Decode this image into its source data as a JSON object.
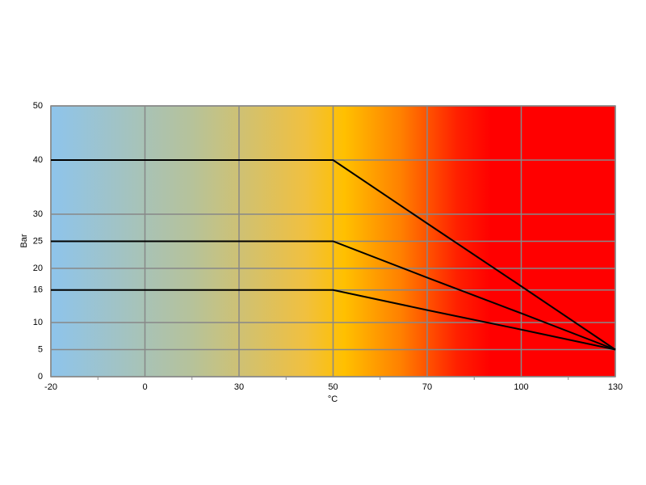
{
  "chart_data": {
    "type": "line",
    "x_label": "°C",
    "y_label": "Bar",
    "categories": [
      "-20",
      "0",
      "30",
      "50",
      "70",
      "100",
      "130"
    ],
    "series": [
      {
        "color": "#000000",
        "values": [
          40,
          40,
          40,
          40,
          28.3,
          16.7,
          5
        ]
      },
      {
        "color": "#000000",
        "values": [
          25,
          25,
          25,
          25,
          18.3,
          11.7,
          5
        ]
      },
      {
        "color": "#000000",
        "values": [
          16,
          16,
          16,
          16,
          12.3,
          8.7,
          5
        ]
      }
    ],
    "ylim": [
      0,
      50
    ],
    "yticks": [
      0,
      5,
      10,
      16,
      20,
      25,
      30,
      40,
      50
    ],
    "grid": true
  }
}
